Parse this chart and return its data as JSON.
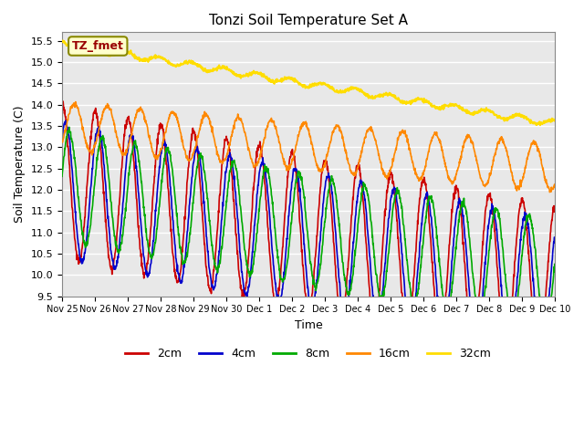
{
  "title": "Tonzi Soil Temperature Set A",
  "xlabel": "Time",
  "ylabel": "Soil Temperature (C)",
  "ylim": [
    9.5,
    15.7
  ],
  "xlim": [
    0,
    15
  ],
  "xtick_labels": [
    "Nov 25",
    "Nov 26",
    "Nov 27",
    "Nov 28",
    "Nov 29",
    "Nov 30",
    "Dec 1",
    "Dec 2",
    "Dec 3",
    "Dec 4",
    "Dec 5",
    "Dec 6",
    "Dec 7",
    "Dec 8",
    "Dec 9",
    "Dec 10"
  ],
  "ytick_values": [
    9.5,
    10.0,
    10.5,
    11.0,
    11.5,
    12.0,
    12.5,
    13.0,
    13.5,
    14.0,
    14.5,
    15.0,
    15.5
  ],
  "legend_labels": [
    "2cm",
    "4cm",
    "8cm",
    "16cm",
    "32cm"
  ],
  "line_colors": [
    "#cc0000",
    "#0000cc",
    "#00aa00",
    "#ff8800",
    "#ffdd00"
  ],
  "line_widths": [
    1.2,
    1.2,
    1.2,
    1.2,
    1.5
  ],
  "annotation_text": "TZ_fmet",
  "annotation_color": "#990000",
  "annotation_bg": "#ffffcc",
  "annotation_border": "#888800",
  "bg_color": "#e8e8e8",
  "grid_color": "#ffffff",
  "n_points": 1500,
  "days": 15
}
